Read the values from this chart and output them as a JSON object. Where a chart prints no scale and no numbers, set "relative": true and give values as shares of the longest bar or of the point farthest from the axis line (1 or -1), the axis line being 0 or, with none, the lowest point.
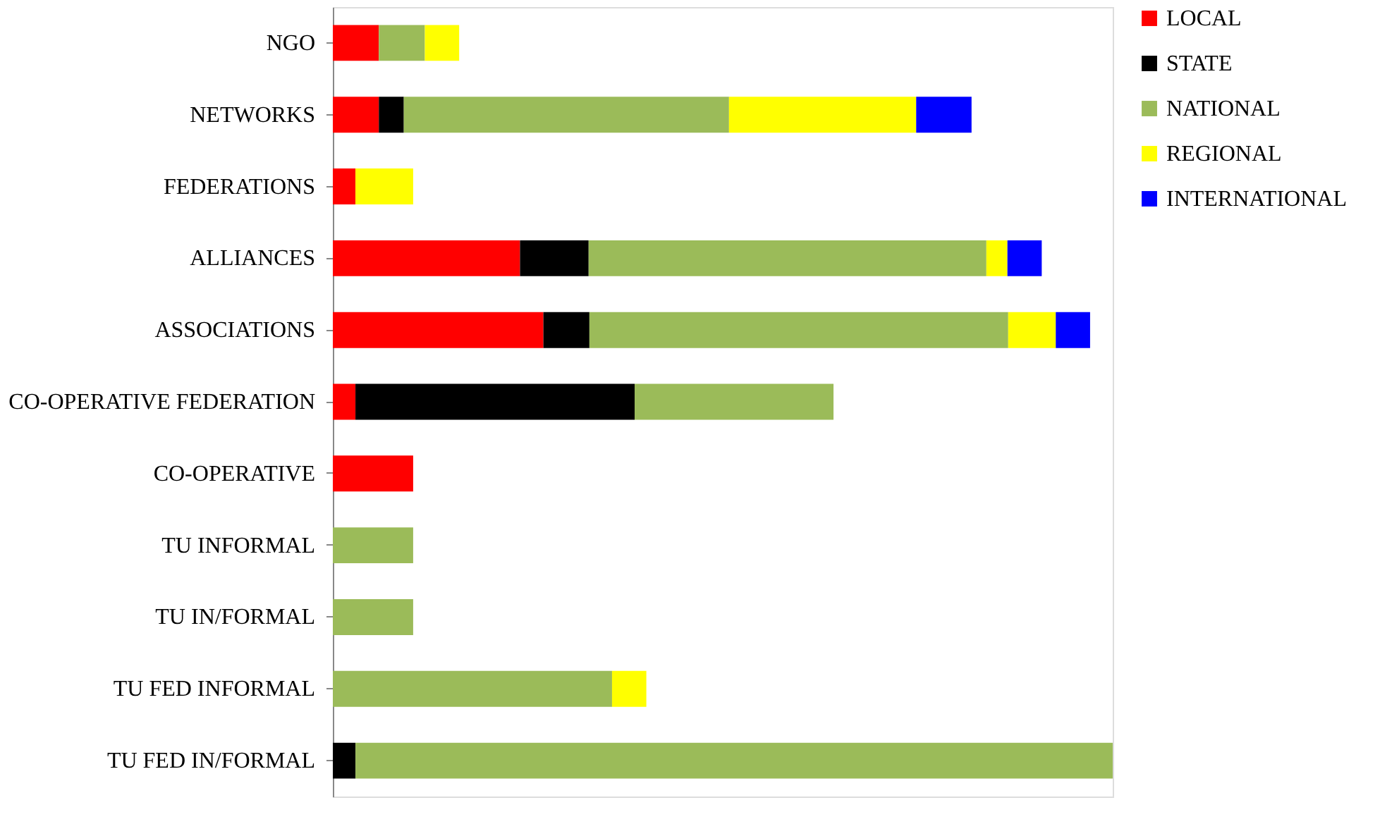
{
  "chart_data": {
    "type": "bar",
    "orientation": "horizontal",
    "stacked": true,
    "relative": true,
    "legend": "right",
    "categories": [
      "NGO",
      "NETWORKS",
      "FEDERATIONS",
      "ALLIANCES",
      "ASSOCIATIONS",
      "CO-OPERATIVE FEDERATION",
      "CO-OPERATIVE",
      "TU INFORMAL",
      "TU IN/FORMAL",
      "TU FED INFORMAL",
      "TU FED IN/FORMAL"
    ],
    "series": [
      {
        "name": "LOCAL",
        "color": "#ff0000",
        "values": [
          0.059,
          0.059,
          0.029,
          0.24,
          0.27,
          0.029,
          0.103,
          null,
          null,
          null,
          null
        ]
      },
      {
        "name": "STATE",
        "color": "#000000",
        "values": [
          null,
          0.032,
          null,
          0.088,
          0.059,
          0.358,
          null,
          null,
          null,
          null,
          0.029
        ]
      },
      {
        "name": "NATIONAL",
        "color": "#9bbb59",
        "values": [
          0.059,
          0.417,
          null,
          0.51,
          0.537,
          0.255,
          null,
          0.103,
          0.103,
          0.358,
          0.971
        ]
      },
      {
        "name": "REGIONAL",
        "color": "#ffff00",
        "values": [
          0.044,
          0.24,
          0.074,
          0.027,
          0.061,
          null,
          null,
          null,
          null,
          0.044,
          null
        ]
      },
      {
        "name": "INTERNATIONAL",
        "color": "#0000ff",
        "values": [
          null,
          0.071,
          null,
          0.044,
          0.044,
          null,
          null,
          null,
          null,
          null,
          null
        ]
      }
    ]
  }
}
